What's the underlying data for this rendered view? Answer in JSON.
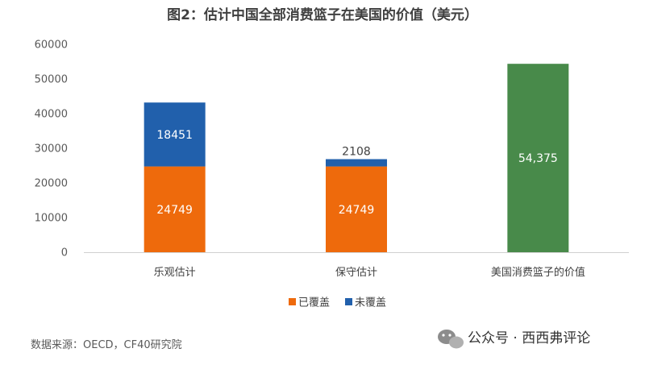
{
  "chart_data": {
    "type": "bar",
    "stacked": true,
    "title": "图2：估计中国全部消费篮子在美国的价值（美元）",
    "categories": [
      "乐观估计",
      "保守估计",
      "美国消费篮子的价值"
    ],
    "series": [
      {
        "name": "已覆盖",
        "color": "#EE6A0C",
        "values": [
          24749,
          24749,
          null
        ],
        "labels": [
          "24749",
          "24749",
          null
        ],
        "label_color": "#ffffff"
      },
      {
        "name": "未覆盖",
        "color": "#2160AC",
        "values": [
          18451,
          2108,
          null
        ],
        "labels": [
          "18451",
          "2108",
          null
        ],
        "label_color": "#ffffff"
      },
      {
        "name": "",
        "color": "#488A4A",
        "values": [
          null,
          null,
          54375
        ],
        "labels": [
          null,
          null,
          "54,375"
        ],
        "label_color": "#ffffff"
      }
    ],
    "y_ticks": [
      "0",
      "10000",
      "20000",
      "30000",
      "40000",
      "50000",
      "60000"
    ],
    "ylim": [
      0,
      60000
    ],
    "legend": [
      "已覆盖",
      "未覆盖"
    ],
    "legend_position": "bottom",
    "grid": false
  },
  "footer": {
    "source": "数据来源：OECD，CF40研究院",
    "watermark": "公众号 · 西西弗评论"
  }
}
